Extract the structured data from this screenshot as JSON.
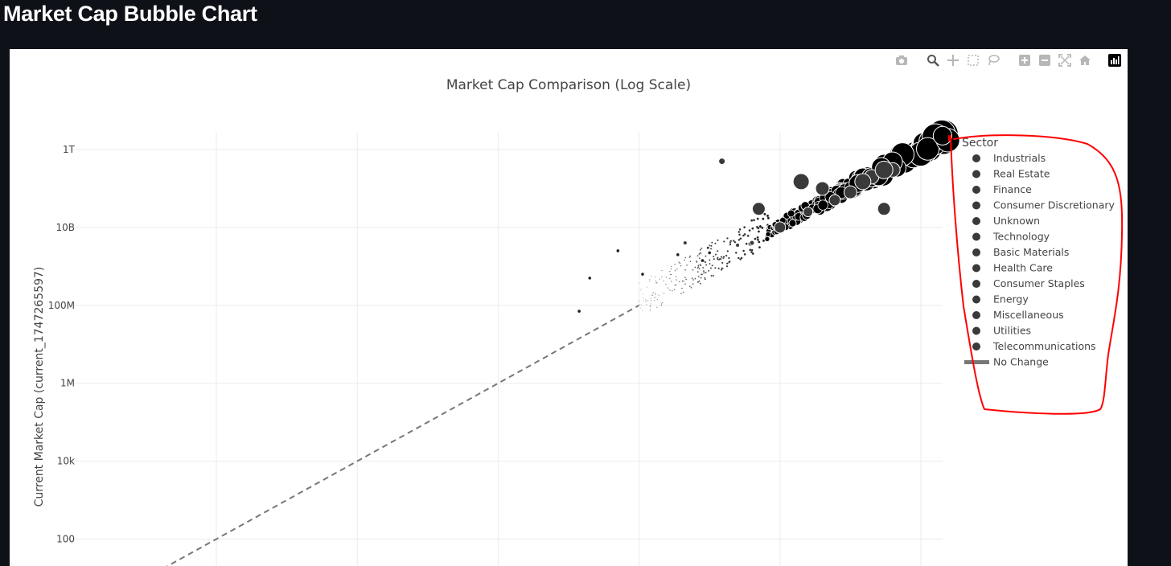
{
  "page": {
    "title": "Market Cap Bubble Chart"
  },
  "modebar": {
    "icons": [
      "camera-icon",
      "zoom-icon",
      "pan-icon",
      "box-select-icon",
      "lasso-icon",
      "zoom-in-icon",
      "zoom-out-icon",
      "autoscale-icon",
      "reset-axes-icon",
      "plotly-logo-icon"
    ]
  },
  "annotation_color": "#ff0000",
  "chart_data": {
    "type": "scatter",
    "title": "Market Cap Comparison (Log Scale)",
    "ylabel": "Current Market Cap (current_1747265597)",
    "xlabel": "",
    "yscale": "log",
    "xscale": "log",
    "ylim": [
      10,
      1000000000000
    ],
    "xlim": [
      10,
      1000000000000
    ],
    "yticks": [
      {
        "value": 1000000000000,
        "label": "1T"
      },
      {
        "value": 10000000000,
        "label": "10B"
      },
      {
        "value": 100000000,
        "label": "100M"
      },
      {
        "value": 1000000,
        "label": "1M"
      },
      {
        "value": 10000,
        "label": "10k"
      },
      {
        "value": 100,
        "label": "100"
      }
    ],
    "xgrid": [
      100,
      10000,
      1000000,
      100000000,
      10000000000,
      1000000000000
    ],
    "grid": true,
    "legend": {
      "title": "Sector",
      "position": "right",
      "entries": [
        {
          "name": "Industrials",
          "symbol": "circle"
        },
        {
          "name": "Real Estate",
          "symbol": "circle"
        },
        {
          "name": "Finance",
          "symbol": "circle"
        },
        {
          "name": "Consumer Discretionary",
          "symbol": "circle"
        },
        {
          "name": "Unknown",
          "symbol": "circle"
        },
        {
          "name": "Technology",
          "symbol": "circle"
        },
        {
          "name": "Basic Materials",
          "symbol": "circle"
        },
        {
          "name": "Health Care",
          "symbol": "circle"
        },
        {
          "name": "Consumer Staples",
          "symbol": "circle"
        },
        {
          "name": "Energy",
          "symbol": "circle"
        },
        {
          "name": "Miscellaneous",
          "symbol": "circle"
        },
        {
          "name": "Utilities",
          "symbol": "circle"
        },
        {
          "name": "Telecommunications",
          "symbol": "circle"
        },
        {
          "name": "No Change",
          "symbol": "dash-line"
        }
      ]
    },
    "marker_color": "#000000",
    "reference_line": {
      "name": "No Change",
      "color": "#777777",
      "style": "dashed",
      "points": [
        [
          10,
          10
        ],
        [
          100000000,
          100000000
        ]
      ]
    },
    "notable_points": [
      {
        "x": 20000000000,
        "y": 150000000000
      },
      {
        "x": 40000000000,
        "y": 100000000000
      },
      {
        "x": 5000000000,
        "y": 30000000000
      },
      {
        "x": 300000000000,
        "y": 30000000000
      },
      {
        "x": 1500000000,
        "y": 500000000000
      },
      {
        "x": 200000000000,
        "y": 200000000000
      },
      {
        "x": 400000000000,
        "y": 300000000000
      },
      {
        "x": 100000000000,
        "y": 80000000000
      },
      {
        "x": 10000000000,
        "y": 10000000000
      },
      {
        "x": 60000000000,
        "y": 50000000000
      },
      {
        "x": 450000000,
        "y": 4000000000
      },
      {
        "x": 950000000,
        "y": 3000000000
      },
      {
        "x": 2500000000,
        "y": 3500000000
      },
      {
        "x": 3800000000,
        "y": 3800000000
      },
      {
        "x": 4000000000,
        "y": 4000000000
      },
      {
        "x": 25000000000,
        "y": 25000000000
      },
      {
        "x": 150000000000,
        "y": 150000000000
      },
      {
        "x": 300000000000,
        "y": 300000000000
      }
    ]
  }
}
